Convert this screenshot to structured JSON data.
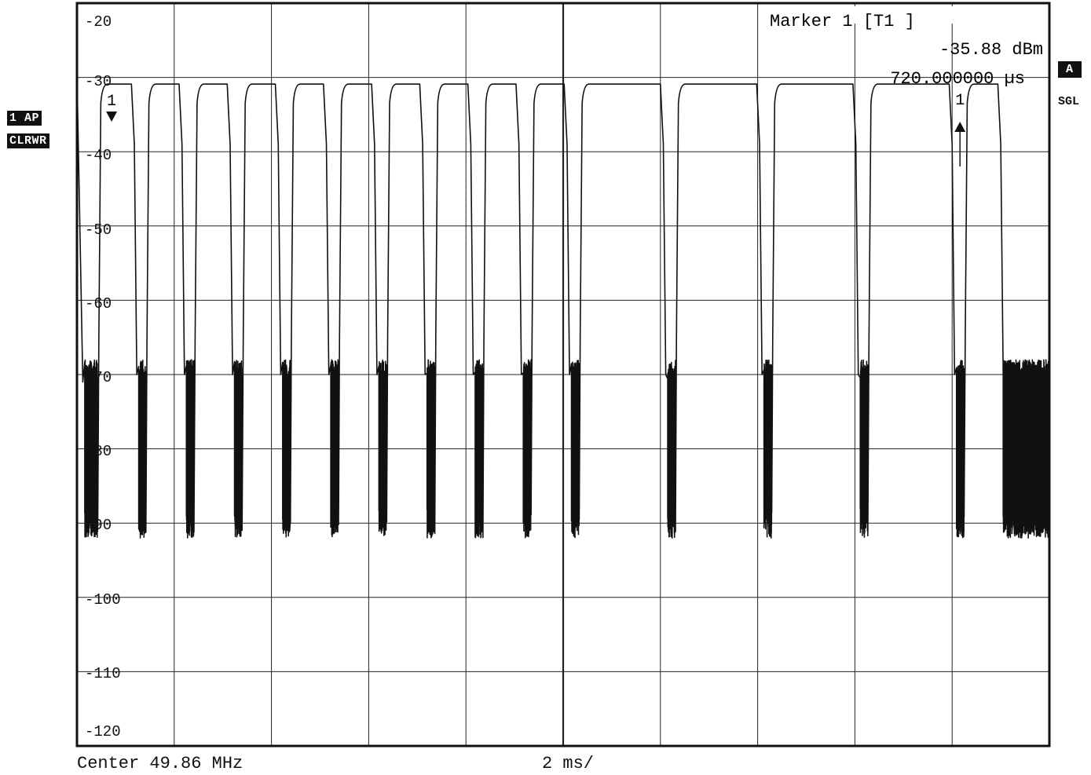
{
  "badges": {
    "trace": "1 AP",
    "mode": "CLRWR",
    "screen": "A",
    "sweep": "SGL"
  },
  "marker": {
    "title": "Marker 1 [T1 ]",
    "level": "-35.88 dBm",
    "time": "720.000000 µs",
    "ref_label": "1",
    "marker_label": "1"
  },
  "footer": {
    "center": "Center 49.86 MHz",
    "span": "2 ms/"
  },
  "chart_data": {
    "type": "line",
    "title": "",
    "xlabel": "",
    "ylabel": "",
    "xlim": [
      0,
      20
    ],
    "x_unit": "ms",
    "ylim": [
      -125,
      -25
    ],
    "y_unit": "dBm",
    "yticks": [
      -20,
      -30,
      -40,
      -50,
      -60,
      -70,
      -80,
      -90,
      -100,
      -110,
      -120
    ],
    "grid": true,
    "noise_floor_range": [
      -97,
      -73
    ],
    "on_level": -35.9,
    "pulses": [
      {
        "on": 0.49,
        "off": 1.15
      },
      {
        "on": 1.48,
        "off": 2.13
      },
      {
        "on": 2.47,
        "off": 3.12
      },
      {
        "on": 3.46,
        "off": 4.11
      },
      {
        "on": 4.45,
        "off": 5.1
      },
      {
        "on": 5.44,
        "off": 6.09
      },
      {
        "on": 6.43,
        "off": 7.08
      },
      {
        "on": 7.42,
        "off": 8.07
      },
      {
        "on": 8.41,
        "off": 9.06
      },
      {
        "on": 9.4,
        "off": 10.05
      },
      {
        "on": 10.39,
        "off": 12.03
      },
      {
        "on": 12.37,
        "off": 14.01
      },
      {
        "on": 14.35,
        "off": 15.99
      },
      {
        "on": 16.33,
        "off": 17.97
      },
      {
        "on": 18.31,
        "off": 18.97
      }
    ],
    "markers": [
      {
        "name": "1",
        "x": 0.72,
        "y": -35.88,
        "type": "ref"
      },
      {
        "name": "1",
        "x": 18.0,
        "y": -35.9,
        "type": "delta"
      }
    ],
    "annotations": [
      "Marker 1 [T1 ]",
      "-35.88 dBm",
      "720.000000 µs"
    ]
  }
}
